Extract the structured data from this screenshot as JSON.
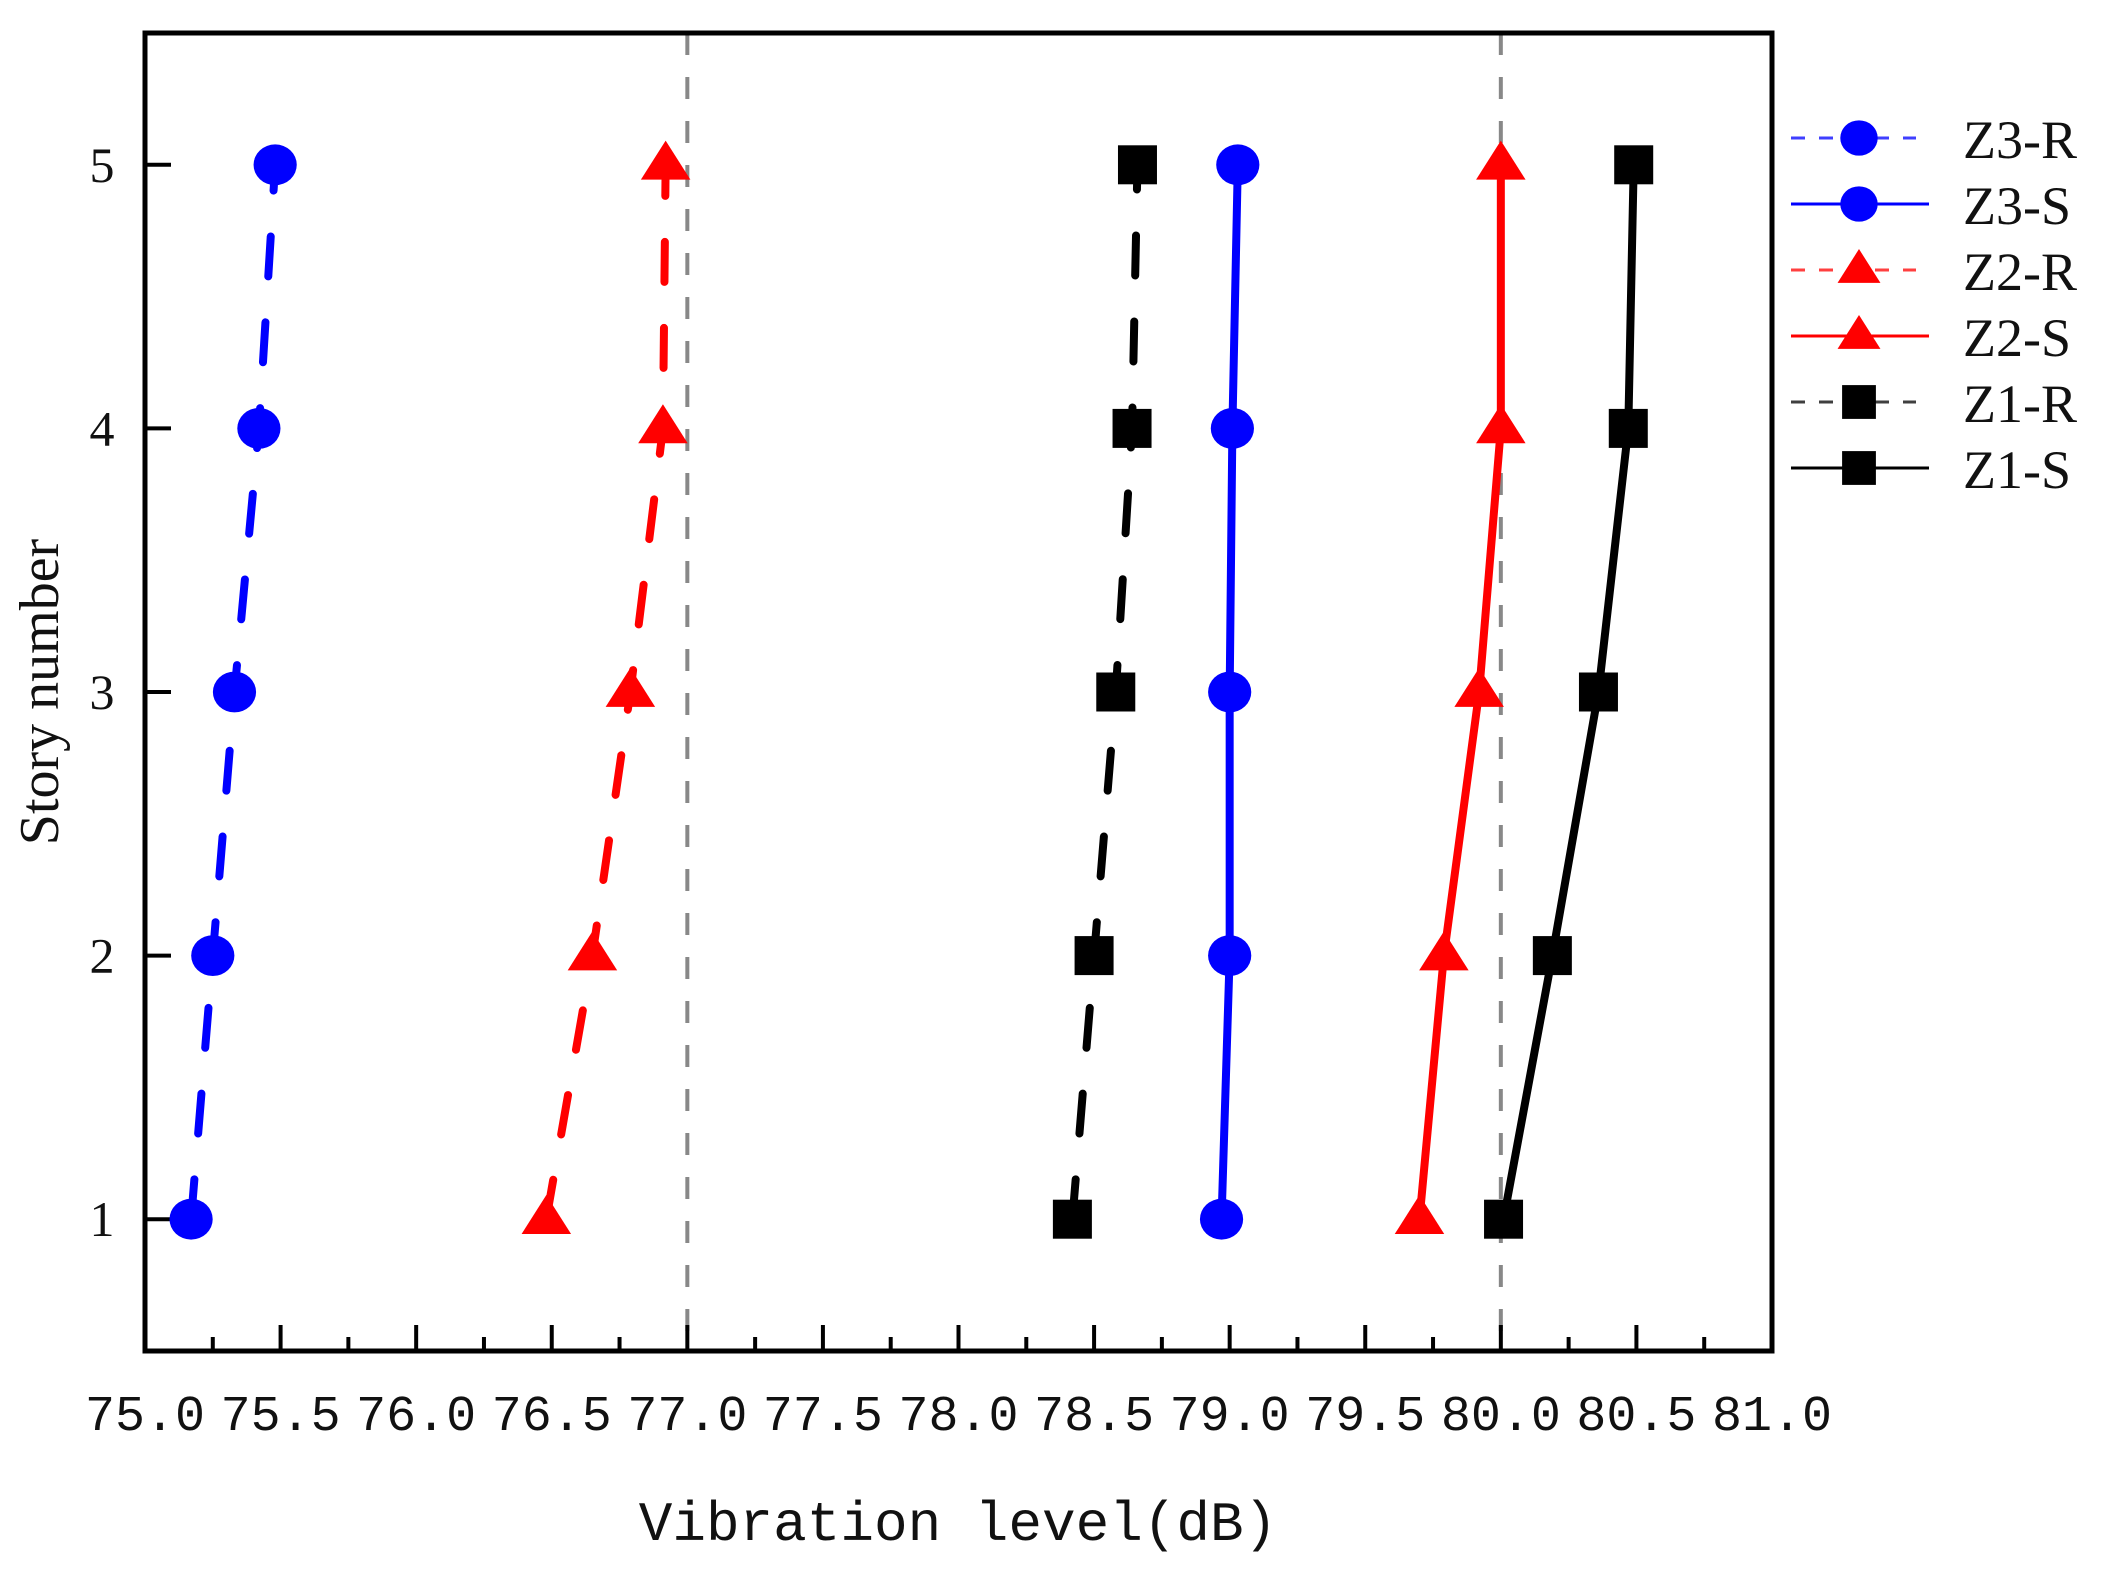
{
  "chart_data": {
    "type": "line",
    "title": "",
    "xlabel": "Vibration level(dB)",
    "ylabel": "Story number",
    "xlim": [
      75.0,
      81.0
    ],
    "ylim": [
      0.5,
      5.5
    ],
    "xticks": [
      "75.0",
      "75.5",
      "76.0",
      "76.5",
      "77.0",
      "77.5",
      "78.0",
      "78.5",
      "79.0",
      "79.5",
      "80.0",
      "80.5",
      "81.0"
    ],
    "yticks": [
      "1",
      "2",
      "3",
      "4",
      "5"
    ],
    "grid": false,
    "reference_lines": [
      {
        "axis": "x",
        "value": 77.0,
        "style": "dashed",
        "color": "#888888"
      },
      {
        "axis": "x",
        "value": 80.0,
        "style": "dashed",
        "color": "#888888"
      }
    ],
    "legend_position": "right-outside",
    "y": [
      1,
      2,
      3,
      4,
      5
    ],
    "series": [
      {
        "name": "Z3-R",
        "color": "#0000ff",
        "line": "dashed",
        "marker": "circle",
        "values": [
          75.17,
          75.25,
          75.33,
          75.42,
          75.48
        ]
      },
      {
        "name": "Z3-S",
        "color": "#0000ff",
        "line": "solid",
        "marker": "circle",
        "values": [
          78.97,
          79.0,
          79.0,
          79.01,
          79.03
        ]
      },
      {
        "name": "Z2-R",
        "color": "#ff0000",
        "line": "dashed",
        "marker": "triangle",
        "values": [
          76.48,
          76.65,
          76.79,
          76.91,
          76.92
        ]
      },
      {
        "name": "Z2-S",
        "color": "#ff0000",
        "line": "solid",
        "marker": "triangle",
        "values": [
          79.7,
          79.79,
          79.92,
          80.0,
          80.0
        ]
      },
      {
        "name": "Z1-R",
        "color": "#000000",
        "line": "dashed",
        "marker": "square",
        "values": [
          78.42,
          78.5,
          78.58,
          78.64,
          78.66
        ]
      },
      {
        "name": "Z1-S",
        "color": "#000000",
        "line": "solid",
        "marker": "square",
        "values": [
          80.01,
          80.19,
          80.36,
          80.47,
          80.49
        ]
      }
    ]
  }
}
